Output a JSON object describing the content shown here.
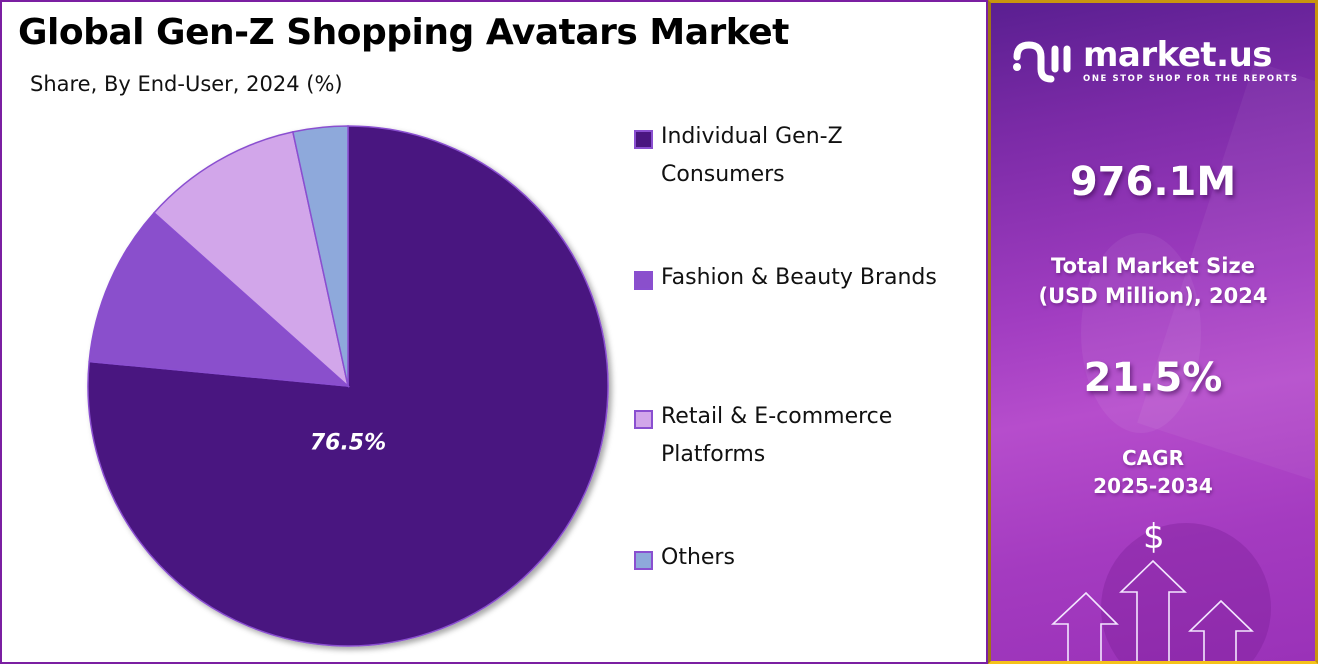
{
  "header": {
    "title": "Global Gen-Z Shopping Avatars Market",
    "subtitle": "Share, By End-User, 2024 (%)"
  },
  "pie": {
    "center_label": "76.5%"
  },
  "legend": [
    {
      "label": "Individual Gen-Z Consumers",
      "color": "#4a1680"
    },
    {
      "label": "Fashion & Beauty Brands",
      "color": "#8a4fcc"
    },
    {
      "label": "Retail & E-commerce Platforms",
      "color": "#d2a6ea"
    },
    {
      "label": "Others",
      "color": "#8ea9db"
    }
  ],
  "sidebar": {
    "logo_name": "market.us",
    "logo_tagline": "ONE STOP SHOP FOR THE REPORTS",
    "market_size_value": "976.1M",
    "market_size_label_line1": "Total Market Size",
    "market_size_label_line2": "(USD Million), 2024",
    "cagr_value": "21.5%",
    "cagr_label_line1": "CAGR",
    "cagr_label_line2": "2025-2034",
    "dollar_symbol": "$"
  },
  "chart_data": {
    "type": "pie",
    "title": "Global Gen-Z Shopping Avatars Market",
    "subtitle": "Share, By End-User, 2024 (%)",
    "categories": [
      "Individual Gen-Z Consumers",
      "Fashion & Beauty Brands",
      "Retail & E-commerce Platforms",
      "Others"
    ],
    "values": [
      76.5,
      10.1,
      10.0,
      3.4
    ],
    "colors": [
      "#4a1680",
      "#8a4fcc",
      "#d2a6ea",
      "#8ea9db"
    ],
    "data_labels": [
      "76.5%"
    ],
    "start_angle": "12 o'clock, clockwise",
    "legend_position": "right"
  }
}
